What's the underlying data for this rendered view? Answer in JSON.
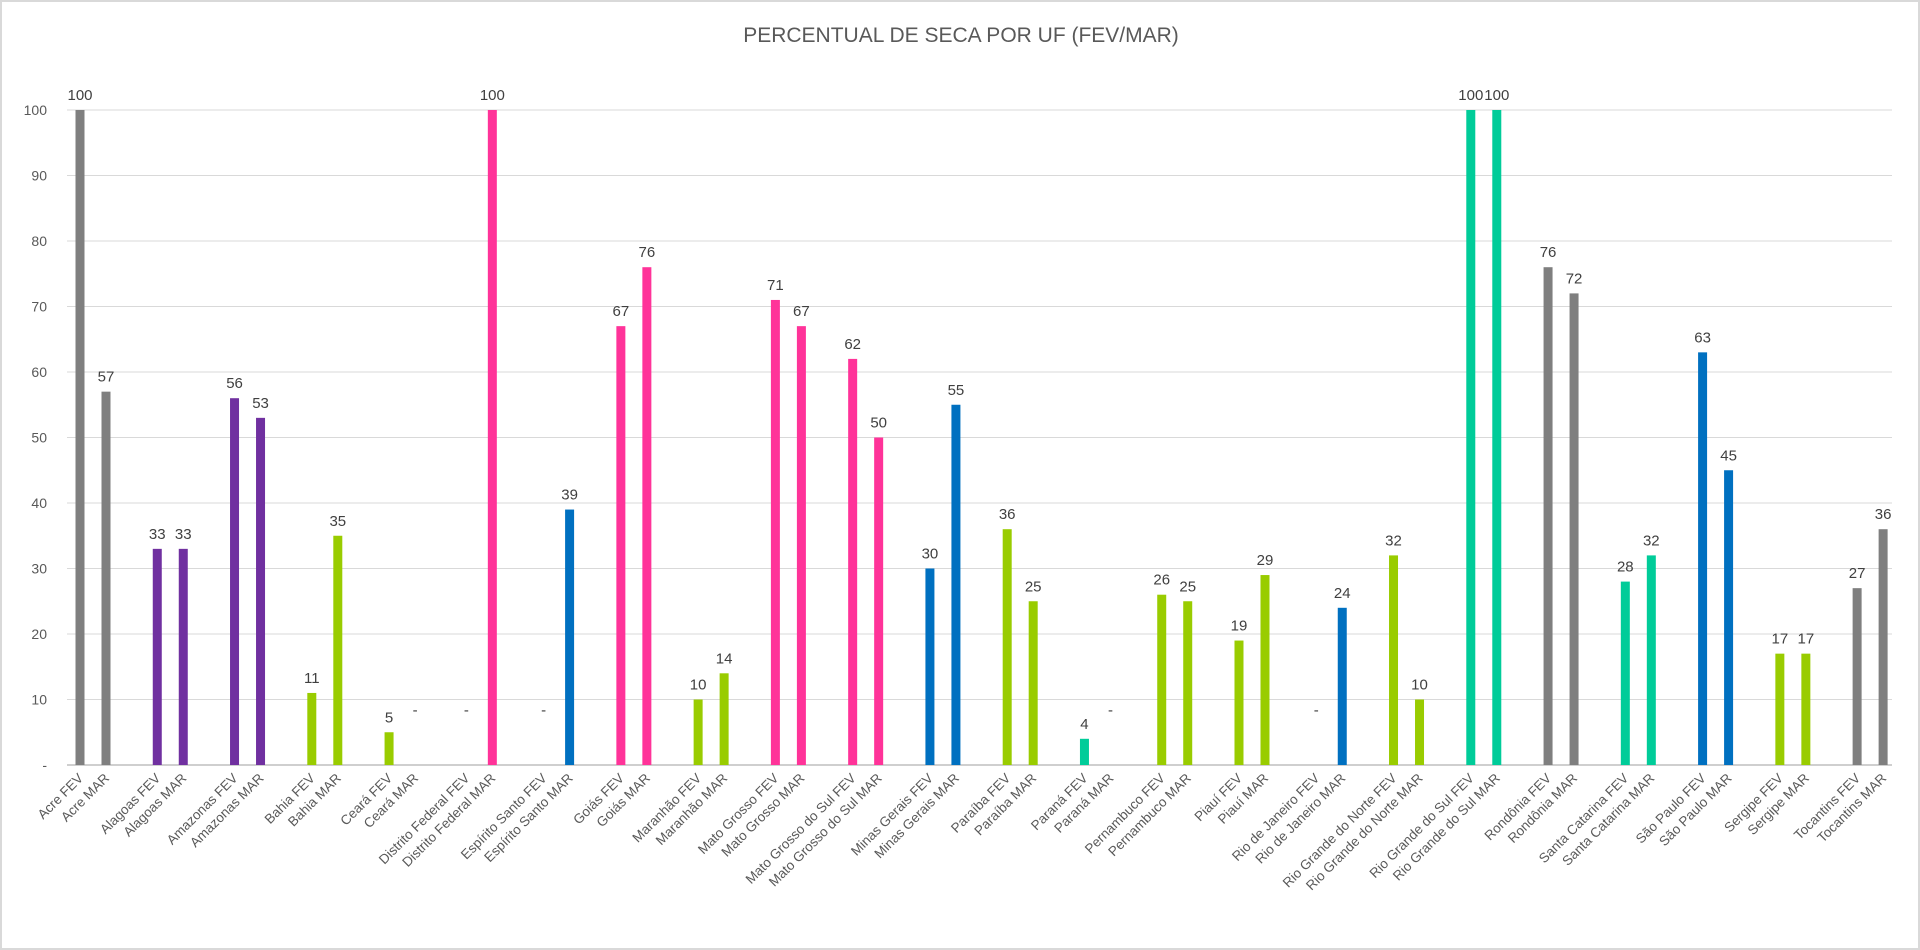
{
  "chart_data": {
    "type": "bar",
    "title": "PERCENTUAL DE SECA POR UF (FEV/MAR)",
    "xlabel": "",
    "ylabel": "",
    "ylim": [
      0,
      100
    ],
    "yticks": [
      0,
      10,
      20,
      30,
      40,
      50,
      60,
      70,
      80,
      90,
      100
    ],
    "ytick_labels": [
      "-",
      "10",
      "20",
      "30",
      "40",
      "50",
      "60",
      "70",
      "80",
      "90",
      "100"
    ],
    "zero_label": "-",
    "grid": true,
    "legend": "none",
    "colors": {
      "gray": "#7f7f7f",
      "purple": "#7030a0",
      "green": "#99cc00",
      "pink": "#ff3399",
      "blue": "#0070c0",
      "teal": "#00cc99"
    },
    "states": [
      {
        "fev_label": "Acre FEV",
        "mar_label": "Acre MAR",
        "fev": 100,
        "mar": 57,
        "color": "gray"
      },
      {
        "fev_label": "Alagoas FEV",
        "mar_label": "Alagoas MAR",
        "fev": 33,
        "mar": 33,
        "color": "purple"
      },
      {
        "fev_label": "Amazonas FEV",
        "mar_label": "Amazonas MAR",
        "fev": 56,
        "mar": 53,
        "color": "purple"
      },
      {
        "fev_label": "Bahia FEV",
        "mar_label": "Bahia MAR",
        "fev": 11,
        "mar": 35,
        "color": "green"
      },
      {
        "fev_label": "Ceará FEV",
        "mar_label": "Ceará MAR",
        "fev": 5,
        "mar": 0,
        "color": "green"
      },
      {
        "fev_label": "Distrito Federal FEV",
        "mar_label": "Distrito Federal MAR",
        "fev": 0,
        "mar": 100,
        "color": "pink"
      },
      {
        "fev_label": "Espírito Santo FEV",
        "mar_label": "Espírito Santo MAR",
        "fev": 0,
        "mar": 39,
        "color": "blue"
      },
      {
        "fev_label": "Goiás FEV",
        "mar_label": "Goiás MAR",
        "fev": 67,
        "mar": 76,
        "color": "pink"
      },
      {
        "fev_label": "Maranhão FEV",
        "mar_label": "Maranhão MAR",
        "fev": 10,
        "mar": 14,
        "color": "green"
      },
      {
        "fev_label": "Mato Grosso FEV",
        "mar_label": "Mato Grosso MAR",
        "fev": 71,
        "mar": 67,
        "color": "pink"
      },
      {
        "fev_label": "Mato Grosso do Sul FEV",
        "mar_label": "Mato Grosso do Sul MAR",
        "fev": 62,
        "mar": 50,
        "color": "pink"
      },
      {
        "fev_label": "Minas Gerais FEV",
        "mar_label": "Minas Gerais MAR",
        "fev": 30,
        "mar": 55,
        "color": "blue"
      },
      {
        "fev_label": "Paraíba FEV",
        "mar_label": "Paraíba MAR",
        "fev": 36,
        "mar": 25,
        "color": "green"
      },
      {
        "fev_label": "Paraná FEV",
        "mar_label": "Paraná MAR",
        "fev": 4,
        "mar": 0,
        "color": "teal"
      },
      {
        "fev_label": "Pernambuco FEV",
        "mar_label": "Pernambuco MAR",
        "fev": 26,
        "mar": 25,
        "color": "green"
      },
      {
        "fev_label": "Piauí FEV",
        "mar_label": "Piauí MAR",
        "fev": 19,
        "mar": 29,
        "color": "green"
      },
      {
        "fev_label": "Rio de Janeiro FEV",
        "mar_label": "Rio de Janeiro MAR",
        "fev": 0,
        "mar": 24,
        "color": "blue"
      },
      {
        "fev_label": "Rio Grande do Norte FEV",
        "mar_label": "Rio Grande do Norte MAR",
        "fev": 32,
        "mar": 10,
        "color": "green"
      },
      {
        "fev_label": "Rio Grande do Sul FEV",
        "mar_label": "Rio Grande do Sul MAR",
        "fev": 100,
        "mar": 100,
        "color": "teal"
      },
      {
        "fev_label": "Rondônia FEV",
        "mar_label": "Rondônia MAR",
        "fev": 76,
        "mar": 72,
        "color": "gray"
      },
      {
        "fev_label": "Santa Catarina FEV",
        "mar_label": "Santa Catarina MAR",
        "fev": 28,
        "mar": 32,
        "color": "teal"
      },
      {
        "fev_label": "São Paulo FEV",
        "mar_label": "São Paulo MAR",
        "fev": 63,
        "mar": 45,
        "color": "blue"
      },
      {
        "fev_label": "Sergipe FEV",
        "mar_label": "Sergipe MAR",
        "fev": 17,
        "mar": 17,
        "color": "green"
      },
      {
        "fev_label": "Tocantins FEV",
        "mar_label": "Tocantins MAR",
        "fev": 27,
        "mar": 36,
        "color": "gray"
      }
    ]
  }
}
